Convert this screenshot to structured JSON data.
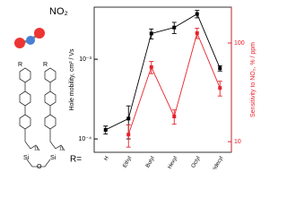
{
  "structure": {
    "molecule": "NO₂",
    "r_labels": [
      "R",
      "R"
    ],
    "atoms": [
      "Si",
      "Si",
      "O"
    ],
    "chain": [
      "11",
      "11"
    ],
    "r_prefix": "R="
  },
  "chart_data": {
    "type": "line",
    "y_label": "Hole mobility, cm² / Vs",
    "y2_label": "Sensitivity to NO₂, % / ppm",
    "categories": [
      "H",
      "Ethyl",
      "Butyl",
      "Hexyl",
      "Octyl",
      "Tridecyl"
    ],
    "log_y": true,
    "log_y2": true,
    "ylim": [
      6.8e-05,
      0.0045
    ],
    "yticks": [
      {
        "value": 0.0001,
        "label": "10⁻⁴"
      },
      {
        "value": 0.001,
        "label": "10⁻³"
      }
    ],
    "y2lim": [
      7.8,
      231
    ],
    "y2ticks": [
      10,
      100
    ],
    "series": [
      {
        "name": "Hole mobility",
        "color": "#000000",
        "values": [
          0.00013,
          0.00018,
          0.0021,
          0.0025,
          0.0037,
          0.00077
        ],
        "errors": [
          1.5e-05,
          8e-05,
          0.0003,
          0.0004,
          0.0004,
          6e-05
        ]
      },
      {
        "name": "Sensitivity",
        "color": "#e8202a",
        "axis": "y2",
        "values": [
          null,
          11.8,
          57,
          18,
          126,
          35
        ],
        "errors": [
          null,
          3,
          8,
          3,
          15,
          6
        ]
      }
    ]
  }
}
